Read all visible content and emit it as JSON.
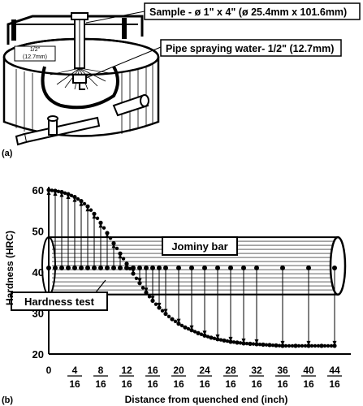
{
  "panel_a": {
    "label": "(a)",
    "callout_sample": "Sample - ø 1\" x 4\" (ø 25.4mm x 101.6mm)",
    "callout_pipe": "Pipe spraying water- 1/2\" (12.7mm)",
    "dim_top": "1/2\"",
    "dim_bottom": "(12.7mm)"
  },
  "panel_b": {
    "label": "(b)",
    "bar_label": "Jominy bar",
    "test_label": "Hardness test"
  },
  "chart_data": {
    "type": "line",
    "title": "",
    "xlabel": "Distance from quenched end (inch)",
    "ylabel": "Hardness (HRC)",
    "ylim": [
      20,
      60
    ],
    "xlim": [
      0,
      46
    ],
    "y_ticks": [
      "20",
      "30",
      "40",
      "50",
      "60"
    ],
    "x_ticks": [
      {
        "num": "0",
        "den": ""
      },
      {
        "num": "4",
        "den": "16"
      },
      {
        "num": "8",
        "den": "16"
      },
      {
        "num": "12",
        "den": "16"
      },
      {
        "num": "16",
        "den": "16"
      },
      {
        "num": "20",
        "den": "16"
      },
      {
        "num": "24",
        "den": "16"
      },
      {
        "num": "28",
        "den": "16"
      },
      {
        "num": "32",
        "den": "16"
      },
      {
        "num": "36",
        "den": "16"
      },
      {
        "num": "40",
        "den": "16"
      },
      {
        "num": "44",
        "den": "16"
      }
    ],
    "x_tick_values": [
      0,
      4,
      8,
      12,
      16,
      20,
      24,
      28,
      32,
      36,
      40,
      44
    ],
    "series": [
      {
        "x": [
          0,
          1,
          2,
          3,
          4,
          5,
          6,
          7,
          8,
          9,
          10,
          11,
          12,
          13,
          14,
          15,
          16,
          17,
          18,
          19,
          20,
          21,
          22,
          23,
          24,
          25,
          26,
          27,
          28,
          29,
          30,
          31,
          32,
          33,
          34,
          35,
          36,
          38,
          40,
          42,
          44
        ],
        "values": [
          60,
          59.8,
          59.5,
          59,
          58.3,
          57.3,
          56,
          54.2,
          52,
          49.5,
          47,
          44.5,
          42,
          39.6,
          37.3,
          35,
          33,
          31.3,
          29.8,
          28.5,
          27.4,
          26.5,
          25.8,
          25.1,
          24.5,
          24,
          23.6,
          23.3,
          23,
          22.8,
          22.6,
          22.5,
          22.4,
          22.3,
          22.2,
          22.1,
          22,
          22,
          22,
          22,
          22
        ]
      }
    ],
    "test_points": {
      "x": [
        0,
        1,
        2,
        3,
        4,
        5,
        6,
        7,
        8,
        9,
        10,
        11,
        12,
        13,
        14,
        15,
        16,
        17,
        18,
        20,
        22,
        24,
        26,
        28,
        30,
        32,
        36,
        40,
        44
      ],
      "y": 41
    }
  }
}
